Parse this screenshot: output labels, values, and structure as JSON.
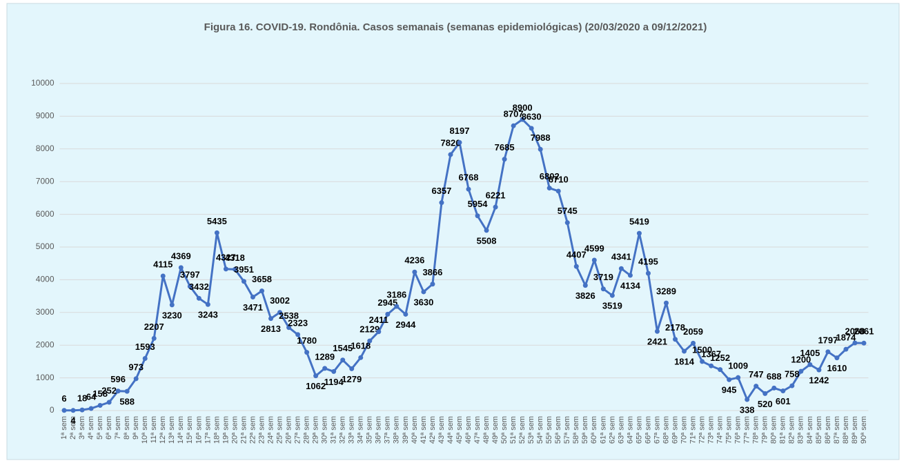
{
  "chart_data": {
    "type": "line",
    "title": "Figura 16. COVID-19. Rondônia. Casos semanais (semanas epidemiológicas) (20/03/2020 a 09/12/2021)",
    "categories": [
      "1ª sem",
      "2ª sem",
      "3ª sem",
      "4ª sem",
      "5ª sem",
      "6ª sem",
      "7ª sem",
      "8ª sem",
      "9ª sem",
      "10ª sem",
      "11ª sem",
      "12ª sem",
      "13ª sem",
      "14ª sem",
      "15ª sem",
      "16ª sem",
      "17ª sem",
      "18ª sem",
      "19ª sem",
      "20ª sem",
      "21ª sem",
      "22ª sem",
      "23ª sem",
      "24ª sem",
      "25ª sem",
      "26ª sem",
      "27ª sem",
      "28ª sem",
      "29ª sem",
      "30ª sem",
      "31ª sem",
      "32ª sem",
      "33ª sem",
      "34ª sem",
      "35ª sem",
      "36ª sem",
      "37ª sem",
      "38ª sem",
      "39ª sem",
      "40ª sem",
      "41ª sem",
      "42ª sem",
      "43ª sem",
      "44ª sem",
      "45ª sem",
      "46ª sem",
      "47ª sem",
      "48ª sem",
      "49ª sem",
      "50ª sem",
      "51ª sem",
      "52ª sem",
      "53ª sem",
      "54ª sem",
      "55ª sem",
      "56ª sem",
      "57ª sem",
      "58ª sem",
      "59ª sem",
      "60ª sem",
      "61ª sem",
      "62ª sem",
      "63ª sem",
      "64ª sem",
      "65ª sem",
      "66ª sem",
      "67ª sem",
      "68ª sem",
      "69ª sem",
      "70ª sem",
      "71ª sem",
      "72ª sem",
      "73ª sem",
      "74ª sem",
      "75ª sem",
      "76ª sem",
      "77ª sem",
      "78ª sem",
      "79ª sem",
      "80ª sem",
      "81ª sem",
      "82ª sem",
      "83ª sem",
      "84ª sem",
      "85ª sem",
      "86ª sem",
      "87ª sem",
      "88ª sem",
      "89ª sem",
      "90ª sem"
    ],
    "values": [
      6,
      4,
      18,
      64,
      158,
      252,
      596,
      588,
      973,
      1593,
      2207,
      4115,
      3230,
      4369,
      3797,
      3432,
      3243,
      5435,
      4327,
      4318,
      3951,
      3471,
      3658,
      2813,
      3002,
      2538,
      2323,
      1780,
      1062,
      1289,
      1194,
      1545,
      1279,
      1618,
      2129,
      2411,
      2945,
      3186,
      2944,
      4236,
      3630,
      3866,
      6357,
      7826,
      8197,
      6768,
      5954,
      5508,
      6221,
      7685,
      8707,
      8900,
      8630,
      7988,
      6802,
      6710,
      5745,
      4407,
      3826,
      4599,
      3719,
      3519,
      4341,
      4134,
      5419,
      4195,
      2421,
      3289,
      2178,
      1814,
      2059,
      1500,
      1367,
      1252,
      945,
      1009,
      338,
      747,
      520,
      688,
      601,
      758,
      1200,
      1405,
      1242,
      1797,
      1610,
      1874,
      2068,
      2061
    ],
    "color": "#4472c4",
    "ylim": [
      0,
      10000
    ],
    "yticks": [
      0,
      1000,
      2000,
      3000,
      4000,
      5000,
      6000,
      7000,
      8000,
      9000,
      10000
    ],
    "grid": true
  }
}
